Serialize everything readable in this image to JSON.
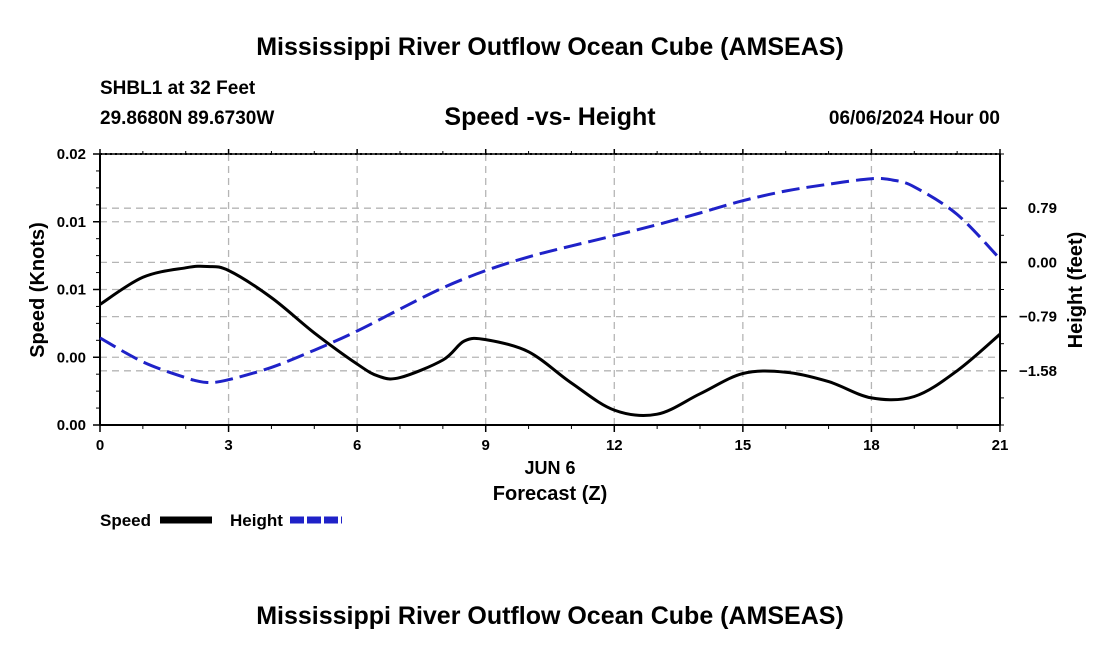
{
  "chart_data": {
    "type": "line",
    "title": "Mississippi River Outflow Ocean Cube (AMSEAS)",
    "footer_title": "Mississippi River Outflow Ocean Cube (AMSEAS)",
    "station": "SHBL1 at 32 Feet",
    "location": "29.8680N  89.6730W",
    "subtitle": "Speed -vs- Height",
    "datetime": "06/06/2024 Hour 00",
    "xlabel": "Forecast (Z)",
    "xdate": "JUN 6",
    "ylabel_left": "Speed (Knots)",
    "ylabel_right": "Height (feet)",
    "xlim": [
      0,
      21
    ],
    "ylim_left": [
      0,
      0.02
    ],
    "ylim_right": [
      -2.37,
      1.58
    ],
    "x_ticks": [
      0,
      3,
      6,
      9,
      12,
      15,
      18,
      21
    ],
    "x_tick_labels": [
      "0",
      "3",
      "6",
      "9",
      "12",
      "15",
      "18",
      "21"
    ],
    "left_ticks": [
      0,
      0.005,
      0.01,
      0.015,
      0.02
    ],
    "left_tick_labels": [
      "0.00",
      "0.00",
      "0.01",
      "0.01",
      "0.02"
    ],
    "right_ticks": [
      -1.58,
      -0.79,
      0,
      0.79
    ],
    "right_tick_labels": [
      "−1.58",
      "−0.79",
      "0.00",
      "0.79"
    ],
    "grid": true,
    "legend_position": "bottom-left",
    "series": [
      {
        "name": "Speed",
        "axis": "left",
        "color": "#000000",
        "style": "solid",
        "x": [
          0,
          1,
          2,
          2.5,
          3,
          4,
          5,
          6,
          6.5,
          7,
          8,
          8.5,
          9,
          10,
          11,
          12,
          13,
          14,
          15,
          16,
          17,
          18,
          19,
          20,
          21
        ],
        "y": [
          0.0089,
          0.0109,
          0.0116,
          0.0117,
          0.0114,
          0.0094,
          0.0068,
          0.0045,
          0.0036,
          0.0035,
          0.0048,
          0.0062,
          0.0063,
          0.0054,
          0.0031,
          0.0011,
          0.0008,
          0.0023,
          0.0038,
          0.0039,
          0.0032,
          0.002,
          0.0021,
          0.004,
          0.0067
        ]
      },
      {
        "name": "Height",
        "axis": "right",
        "color": "#1f22c8",
        "style": "dashed",
        "x": [
          0,
          1,
          2,
          2.5,
          3,
          4,
          5,
          6,
          7,
          8,
          9,
          10,
          11,
          12,
          13,
          14,
          15,
          16,
          17,
          18,
          18.5,
          19,
          20,
          21
        ],
        "y": [
          -1.1,
          -1.45,
          -1.68,
          -1.75,
          -1.71,
          -1.53,
          -1.28,
          -1.0,
          -0.68,
          -0.37,
          -0.12,
          0.08,
          0.24,
          0.39,
          0.55,
          0.72,
          0.9,
          1.04,
          1.14,
          1.22,
          1.2,
          1.1,
          0.7,
          0.05
        ]
      }
    ]
  }
}
